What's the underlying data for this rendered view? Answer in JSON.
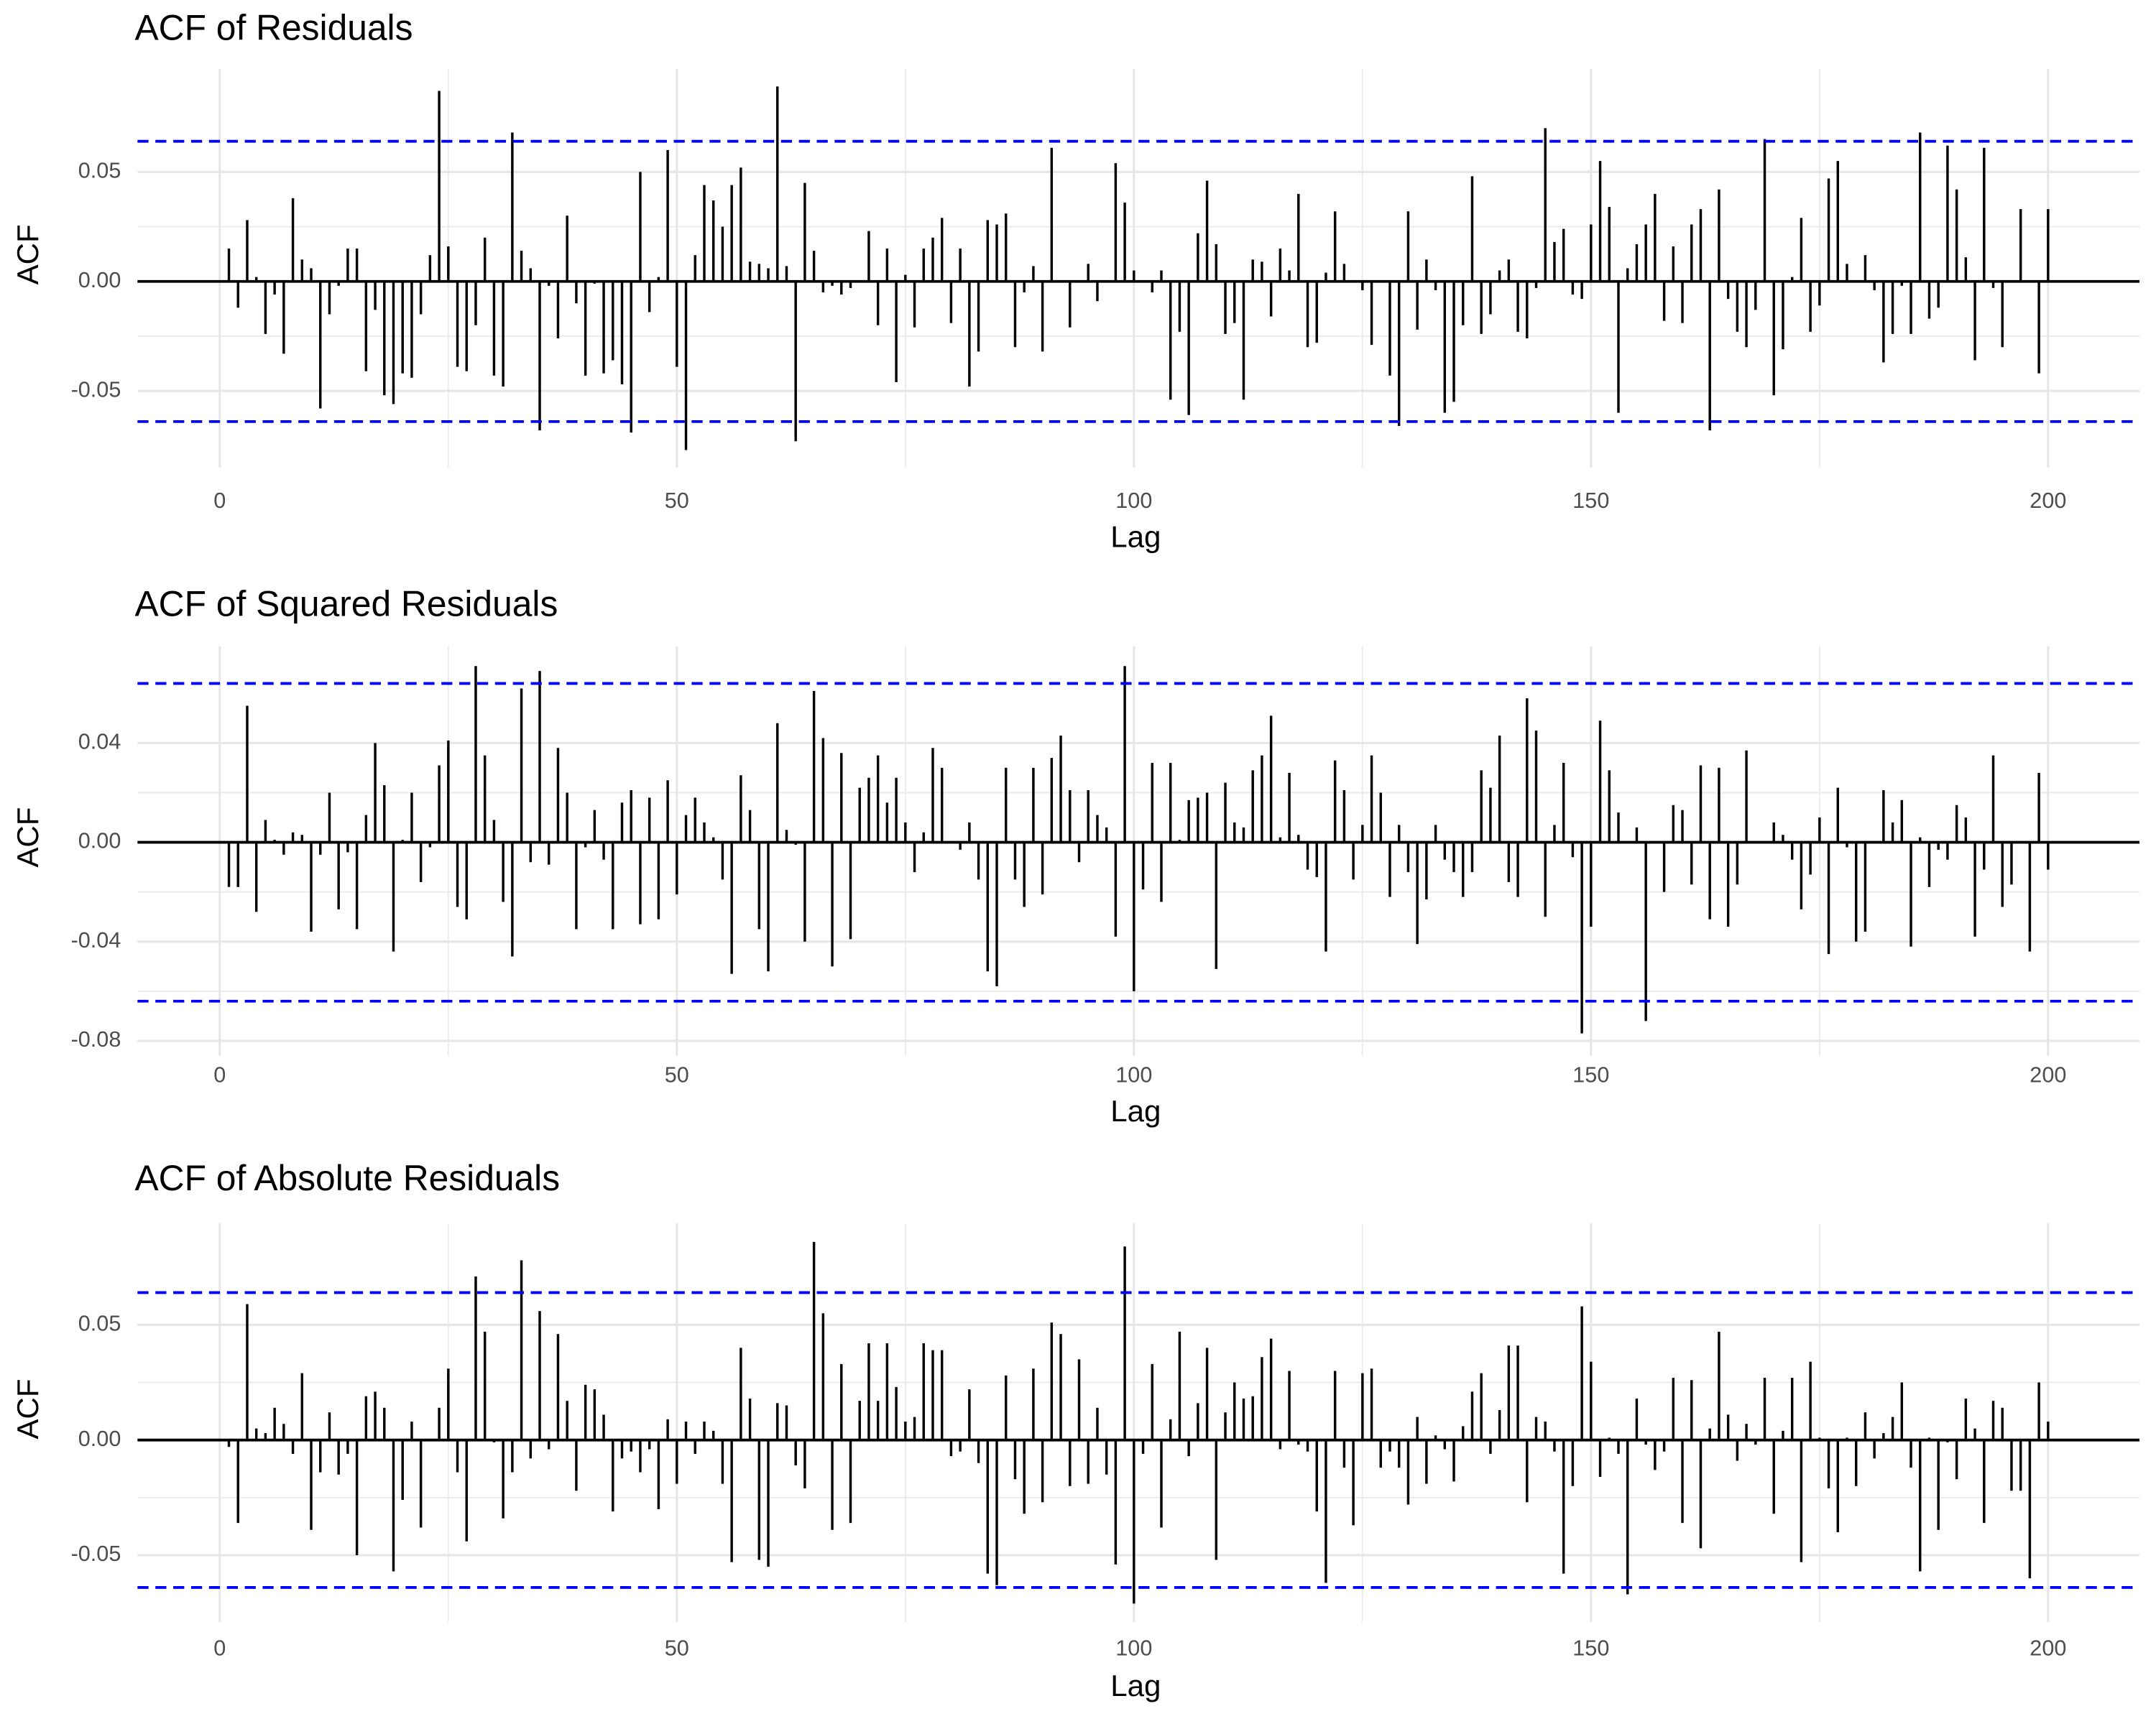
{
  "chart_data": [
    {
      "type": "acf",
      "title": "ACF of Residuals",
      "x_label": "Lag",
      "y_label": "ACF",
      "color": "#000000",
      "x": [
        1,
        2,
        3,
        4,
        5,
        6,
        7,
        8,
        9,
        10,
        11,
        12,
        13,
        14,
        15,
        16,
        17,
        18,
        19,
        20,
        21,
        22,
        23,
        24,
        25,
        26,
        27,
        28,
        29,
        30,
        31,
        32,
        33,
        34,
        35,
        36,
        37,
        38,
        39,
        40,
        41,
        42,
        43,
        44,
        45,
        46,
        47,
        48,
        49,
        50,
        51,
        52,
        53,
        54,
        55,
        56,
        57,
        58,
        59,
        60,
        61,
        62,
        63,
        64,
        65,
        66,
        67,
        68,
        69,
        70,
        71,
        72,
        73,
        74,
        75,
        76,
        77,
        78,
        79,
        80,
        81,
        82,
        83,
        84,
        85,
        86,
        87,
        88,
        89,
        90,
        91,
        92,
        93,
        94,
        95,
        96,
        97,
        98,
        99,
        100,
        101,
        102,
        103,
        104,
        105,
        106,
        107,
        108,
        109,
        110,
        111,
        112,
        113,
        114,
        115,
        116,
        117,
        118,
        119,
        120,
        121,
        122,
        123,
        124,
        125,
        126,
        127,
        128,
        129,
        130,
        131,
        132,
        133,
        134,
        135,
        136,
        137,
        138,
        139,
        140,
        141,
        142,
        143,
        144,
        145,
        146,
        147,
        148,
        149,
        150,
        151,
        152,
        153,
        154,
        155,
        156,
        157,
        158,
        159,
        160,
        161,
        162,
        163,
        164,
        165,
        166,
        167,
        168,
        169,
        170,
        171,
        172,
        173,
        174,
        175,
        176,
        177,
        178,
        179,
        180,
        181,
        182,
        183,
        184,
        185,
        186,
        187,
        188,
        189,
        190,
        191,
        192,
        193,
        194,
        195,
        196,
        197,
        198,
        199,
        200
      ],
      "values": [
        0.015,
        -0.012,
        0.028,
        0.002,
        -0.024,
        -0.006,
        -0.033,
        0.038,
        0.01,
        0.006,
        -0.058,
        -0.015,
        -0.002,
        0.015,
        0.015,
        -0.041,
        -0.013,
        -0.052,
        -0.056,
        -0.042,
        -0.044,
        -0.015,
        0.012,
        0.087,
        0.016,
        -0.039,
        -0.041,
        -0.02,
        0.02,
        -0.043,
        -0.048,
        0.068,
        0.014,
        0.006,
        -0.068,
        -0.002,
        -0.026,
        0.03,
        -0.01,
        -0.043,
        -0.001,
        -0.042,
        -0.036,
        -0.047,
        -0.069,
        0.05,
        -0.014,
        0.002,
        0.06,
        -0.039,
        -0.077,
        0.012,
        0.044,
        0.037,
        0.025,
        0.044,
        0.052,
        0.009,
        0.008,
        0.006,
        0.089,
        0.007,
        -0.073,
        0.045,
        0.014,
        -0.005,
        -0.002,
        -0.006,
        -0.003,
        0,
        0.023,
        -0.02,
        0.015,
        -0.046,
        0.003,
        -0.021,
        0.015,
        0.02,
        0.029,
        -0.019,
        0.015,
        -0.048,
        -0.032,
        0.028,
        0.026,
        0.031,
        -0.03,
        -0.005,
        0.007,
        -0.032,
        0.061,
        0,
        -0.021,
        0,
        0.008,
        -0.009,
        0,
        0.054,
        0.036,
        0.005,
        0,
        -0.005,
        0.005,
        -0.054,
        -0.023,
        -0.061,
        0.022,
        0.046,
        0.017,
        -0.024,
        -0.019,
        -0.054,
        0.01,
        0.009,
        -0.016,
        0.015,
        0.005,
        0.04,
        -0.03,
        -0.028,
        0.004,
        0.032,
        0.008,
        0,
        -0.004,
        -0.029,
        0,
        -0.043,
        -0.066,
        0.032,
        -0.022,
        0.01,
        -0.004,
        -0.06,
        -0.055,
        -0.02,
        0.048,
        -0.024,
        -0.015,
        0.005,
        0.01,
        -0.023,
        -0.026,
        -0.003,
        0.07,
        0.018,
        0.024,
        -0.006,
        -0.008,
        0.026,
        0.055,
        0.034,
        -0.06,
        0.006,
        0.017,
        0.026,
        0.04,
        -0.018,
        0.016,
        -0.019,
        0.026,
        0.033,
        -0.068,
        0.042,
        -0.008,
        -0.023,
        -0.03,
        -0.013,
        0.065,
        -0.052,
        -0.031,
        0.002,
        0.029,
        -0.023,
        -0.011,
        0.047,
        0.055,
        0.008,
        0,
        0.012,
        -0.004,
        -0.037,
        -0.024,
        -0.002,
        -0.024,
        0.068,
        -0.017,
        -0.012,
        0.062,
        0.042,
        0.011,
        -0.036,
        0.061,
        -0.003,
        -0.03,
        0,
        0.033,
        0,
        -0.042,
        0.033
      ],
      "significance_lines": {
        "values": [
          0.064,
          -0.064
        ],
        "color": "#0000ff"
      },
      "xlim": [
        -9,
        210
      ],
      "xticks": [
        0,
        50,
        100,
        150,
        200
      ],
      "ylim": [
        -0.085,
        0.097
      ],
      "yticks": [
        -0.05,
        {
          "value": 0,
          "label": "0.00"
        },
        0.05
      ],
      "grid": true
    },
    {
      "type": "acf",
      "title": "ACF of Squared Residuals",
      "x_label": "Lag",
      "y_label": "ACF",
      "color": "#000000",
      "x": [
        1,
        2,
        3,
        4,
        5,
        6,
        7,
        8,
        9,
        10,
        11,
        12,
        13,
        14,
        15,
        16,
        17,
        18,
        19,
        20,
        21,
        22,
        23,
        24,
        25,
        26,
        27,
        28,
        29,
        30,
        31,
        32,
        33,
        34,
        35,
        36,
        37,
        38,
        39,
        40,
        41,
        42,
        43,
        44,
        45,
        46,
        47,
        48,
        49,
        50,
        51,
        52,
        53,
        54,
        55,
        56,
        57,
        58,
        59,
        60,
        61,
        62,
        63,
        64,
        65,
        66,
        67,
        68,
        69,
        70,
        71,
        72,
        73,
        74,
        75,
        76,
        77,
        78,
        79,
        80,
        81,
        82,
        83,
        84,
        85,
        86,
        87,
        88,
        89,
        90,
        91,
        92,
        93,
        94,
        95,
        96,
        97,
        98,
        99,
        100,
        101,
        102,
        103,
        104,
        105,
        106,
        107,
        108,
        109,
        110,
        111,
        112,
        113,
        114,
        115,
        116,
        117,
        118,
        119,
        120,
        121,
        122,
        123,
        124,
        125,
        126,
        127,
        128,
        129,
        130,
        131,
        132,
        133,
        134,
        135,
        136,
        137,
        138,
        139,
        140,
        141,
        142,
        143,
        144,
        145,
        146,
        147,
        148,
        149,
        150,
        151,
        152,
        153,
        154,
        155,
        156,
        157,
        158,
        159,
        160,
        161,
        162,
        163,
        164,
        165,
        166,
        167,
        168,
        169,
        170,
        171,
        172,
        173,
        174,
        175,
        176,
        177,
        178,
        179,
        180,
        181,
        182,
        183,
        184,
        185,
        186,
        187,
        188,
        189,
        190,
        191,
        192,
        193,
        194,
        195,
        196,
        197,
        198,
        199,
        200
      ],
      "values": [
        -0.018,
        -0.018,
        0.055,
        -0.028,
        0.009,
        0.001,
        -0.005,
        0.004,
        0.003,
        -0.036,
        -0.005,
        0.02,
        -0.027,
        -0.004,
        -0.035,
        0.011,
        0.04,
        0.023,
        -0.044,
        0.001,
        0.02,
        -0.016,
        -0.002,
        0.031,
        0.041,
        -0.026,
        -0.031,
        0.071,
        0.035,
        0.009,
        -0.024,
        -0.046,
        0.062,
        -0.008,
        0.069,
        -0.009,
        0.038,
        0.02,
        -0.035,
        -0.002,
        0.013,
        -0.007,
        -0.035,
        0.016,
        0.021,
        -0.033,
        0.018,
        -0.031,
        0.025,
        -0.021,
        0.011,
        0.018,
        0.008,
        0.002,
        -0.015,
        -0.053,
        0.027,
        0.013,
        -0.035,
        -0.052,
        0.048,
        0.005,
        -0.001,
        -0.04,
        0.061,
        0.042,
        -0.05,
        0.036,
        -0.039,
        0.022,
        0.026,
        0.035,
        0.016,
        0.026,
        0.008,
        -0.012,
        0.004,
        0.038,
        0.03,
        0,
        -0.003,
        0.008,
        -0.015,
        -0.052,
        -0.058,
        0.03,
        -0.015,
        -0.026,
        0.03,
        -0.021,
        0.034,
        0.043,
        0.021,
        -0.008,
        0.021,
        0.011,
        0.006,
        -0.038,
        0.071,
        -0.06,
        -0.019,
        0.032,
        -0.024,
        0.032,
        0.001,
        0.017,
        0.018,
        0.02,
        -0.051,
        0.024,
        0.008,
        0.006,
        0.029,
        0.035,
        0.051,
        0.002,
        0.028,
        0.003,
        -0.011,
        -0.014,
        -0.044,
        0.033,
        0.021,
        -0.015,
        0.007,
        0.035,
        0.02,
        -0.022,
        0.007,
        -0.012,
        -0.041,
        -0.023,
        0.007,
        -0.007,
        -0.012,
        -0.022,
        -0.012,
        0.029,
        0.022,
        0.043,
        -0.016,
        -0.022,
        0.058,
        0.045,
        -0.03,
        0.007,
        0.032,
        -0.006,
        -0.077,
        -0.034,
        0.049,
        0.029,
        0.012,
        0,
        0.006,
        -0.072,
        0,
        -0.02,
        0.015,
        0.013,
        -0.017,
        0.031,
        -0.031,
        0.03,
        -0.034,
        -0.017,
        0.037,
        0,
        0,
        0.008,
        0.003,
        -0.007,
        -0.027,
        -0.013,
        0.01,
        -0.045,
        0.022,
        -0.002,
        -0.04,
        -0.036,
        0,
        0.021,
        0.008,
        0.017,
        -0.042,
        0.002,
        -0.018,
        -0.003,
        -0.007,
        0.015,
        0.01,
        -0.038,
        -0.011,
        0.035,
        -0.026,
        -0.017,
        0,
        -0.044,
        0.028,
        -0.011
      ],
      "significance_lines": {
        "values": [
          0.064,
          -0.064
        ],
        "color": "#0000ff"
      },
      "xlim": [
        -9,
        210
      ],
      "xticks": [
        0,
        50,
        100,
        150,
        200
      ],
      "ylim": [
        -0.086,
        0.079
      ],
      "yticks": [
        -0.08,
        -0.04,
        {
          "value": 0,
          "label": "0.00"
        },
        0.04
      ],
      "grid": true
    },
    {
      "type": "acf",
      "title": "ACF of Absolute Residuals",
      "x_label": "Lag",
      "y_label": "ACF",
      "color": "#000000",
      "x": [
        1,
        2,
        3,
        4,
        5,
        6,
        7,
        8,
        9,
        10,
        11,
        12,
        13,
        14,
        15,
        16,
        17,
        18,
        19,
        20,
        21,
        22,
        23,
        24,
        25,
        26,
        27,
        28,
        29,
        30,
        31,
        32,
        33,
        34,
        35,
        36,
        37,
        38,
        39,
        40,
        41,
        42,
        43,
        44,
        45,
        46,
        47,
        48,
        49,
        50,
        51,
        52,
        53,
        54,
        55,
        56,
        57,
        58,
        59,
        60,
        61,
        62,
        63,
        64,
        65,
        66,
        67,
        68,
        69,
        70,
        71,
        72,
        73,
        74,
        75,
        76,
        77,
        78,
        79,
        80,
        81,
        82,
        83,
        84,
        85,
        86,
        87,
        88,
        89,
        90,
        91,
        92,
        93,
        94,
        95,
        96,
        97,
        98,
        99,
        100,
        101,
        102,
        103,
        104,
        105,
        106,
        107,
        108,
        109,
        110,
        111,
        112,
        113,
        114,
        115,
        116,
        117,
        118,
        119,
        120,
        121,
        122,
        123,
        124,
        125,
        126,
        127,
        128,
        129,
        130,
        131,
        132,
        133,
        134,
        135,
        136,
        137,
        138,
        139,
        140,
        141,
        142,
        143,
        144,
        145,
        146,
        147,
        148,
        149,
        150,
        151,
        152,
        153,
        154,
        155,
        156,
        157,
        158,
        159,
        160,
        161,
        162,
        163,
        164,
        165,
        166,
        167,
        168,
        169,
        170,
        171,
        172,
        173,
        174,
        175,
        176,
        177,
        178,
        179,
        180,
        181,
        182,
        183,
        184,
        185,
        186,
        187,
        188,
        189,
        190,
        191,
        192,
        193,
        194,
        195,
        196,
        197,
        198,
        199,
        200
      ],
      "values": [
        -0.003,
        -0.036,
        0.059,
        0.005,
        0.003,
        0.014,
        0.007,
        -0.006,
        0.029,
        -0.039,
        -0.014,
        0.012,
        -0.015,
        -0.006,
        -0.05,
        0.019,
        0.021,
        0.014,
        -0.057,
        -0.026,
        0.008,
        -0.038,
        0,
        0.014,
        0.031,
        -0.014,
        -0.044,
        0.071,
        0.047,
        -0.001,
        -0.034,
        -0.014,
        0.078,
        -0.008,
        0.056,
        -0.004,
        0.046,
        0.017,
        -0.022,
        0.024,
        0.022,
        0.011,
        -0.031,
        -0.008,
        -0.005,
        -0.014,
        -0.004,
        -0.03,
        0.009,
        -0.019,
        0.008,
        -0.006,
        0.008,
        0.004,
        -0.019,
        -0.053,
        0.04,
        0.018,
        -0.052,
        -0.055,
        0.016,
        0.015,
        -0.011,
        -0.021,
        0.086,
        0.055,
        -0.039,
        0.033,
        -0.036,
        0.017,
        0.042,
        0.017,
        0.042,
        0.023,
        0.008,
        0.01,
        0.042,
        0.039,
        0.039,
        -0.007,
        -0.005,
        0.022,
        -0.01,
        -0.058,
        -0.063,
        0.028,
        -0.017,
        -0.032,
        0.031,
        -0.027,
        0.051,
        0.046,
        -0.02,
        0.035,
        -0.019,
        0.014,
        -0.015,
        -0.054,
        0.084,
        -0.071,
        -0.006,
        0.033,
        -0.038,
        0.009,
        0.047,
        -0.007,
        0.016,
        0.04,
        -0.052,
        0.012,
        0.025,
        0.018,
        0.019,
        0.036,
        0.044,
        -0.004,
        0.03,
        -0.002,
        -0.005,
        -0.031,
        -0.062,
        0.03,
        -0.012,
        -0.037,
        0.029,
        0.031,
        -0.012,
        -0.005,
        -0.012,
        -0.028,
        0.01,
        -0.019,
        0.002,
        -0.004,
        -0.018,
        0.006,
        0.021,
        0.029,
        -0.006,
        0.013,
        0.041,
        0.041,
        -0.027,
        0.01,
        0.008,
        -0.005,
        -0.058,
        -0.02,
        0.058,
        0.034,
        -0.016,
        0.001,
        -0.006,
        -0.067,
        0.018,
        -0.002,
        -0.013,
        -0.005,
        0.027,
        -0.036,
        0.026,
        -0.047,
        0.005,
        0.047,
        0.011,
        -0.009,
        0.007,
        -0.002,
        0.027,
        -0.032,
        0.004,
        0.027,
        -0.053,
        0.034,
        0.001,
        -0.021,
        -0.04,
        0.001,
        -0.02,
        0.012,
        -0.008,
        0.003,
        0.01,
        0.025,
        -0.012,
        -0.057,
        0.001,
        -0.039,
        -0.001,
        -0.017,
        0.018,
        0.005,
        -0.036,
        0.017,
        0.014,
        -0.022,
        -0.022,
        -0.06,
        0.025,
        0.008
      ],
      "significance_lines": {
        "values": [
          0.064,
          -0.064
        ],
        "color": "#0000ff"
      },
      "xlim": [
        -9,
        210
      ],
      "xticks": [
        0,
        50,
        100,
        150,
        200
      ],
      "ylim": [
        -0.079,
        0.094
      ],
      "yticks": [
        -0.05,
        {
          "value": 0,
          "label": "0.00"
        },
        0.05
      ],
      "grid": true
    }
  ]
}
